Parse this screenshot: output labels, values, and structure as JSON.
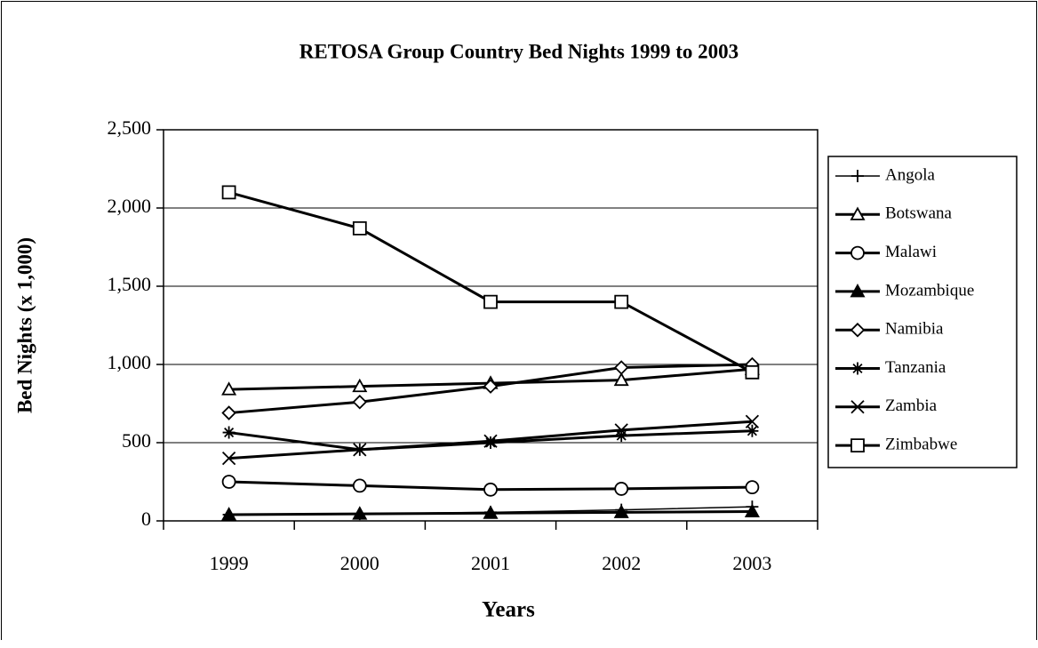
{
  "chart_data": {
    "type": "line",
    "title": "RETOSA Group Country Bed Nights 1999 to 2003",
    "x_label": "Years",
    "y_label": "Bed Nights (x 1,000)",
    "categories": [
      "1999",
      "2000",
      "2001",
      "2002",
      "2003"
    ],
    "ylim": [
      0,
      2500
    ],
    "yticks": [
      0,
      500,
      {
        "value": 1000,
        "label": "1,000"
      },
      {
        "value": 1500,
        "label": "1,500"
      },
      {
        "value": 2000,
        "label": "2,000"
      },
      {
        "value": 2500,
        "label": "2,500"
      }
    ],
    "grid": true,
    "legend": "right",
    "series": [
      {
        "name": "Angola",
        "color": "#000000",
        "marker": "plus",
        "line_width": 1.5,
        "values": [
          40,
          45,
          55,
          70,
          90
        ]
      },
      {
        "name": "Botswana",
        "color": "#000000",
        "marker": "triangle-open",
        "line_width": 3,
        "values": [
          840,
          860,
          880,
          900,
          970
        ]
      },
      {
        "name": "Malawi",
        "color": "#000000",
        "marker": "circle-open",
        "line_width": 3,
        "values": [
          250,
          225,
          200,
          205,
          215
        ]
      },
      {
        "name": "Mozambique",
        "color": "#000000",
        "marker": "triangle-filled",
        "line_width": 3,
        "values": [
          40,
          45,
          50,
          55,
          60
        ]
      },
      {
        "name": "Namibia",
        "color": "#000000",
        "marker": "diamond-open",
        "line_width": 3,
        "values": [
          690,
          760,
          860,
          980,
          1000
        ]
      },
      {
        "name": "Tanzania",
        "color": "#000000",
        "marker": "asterisk",
        "line_width": 3,
        "values": [
          565,
          455,
          500,
          545,
          575
        ]
      },
      {
        "name": "Zambia",
        "color": "#000000",
        "marker": "x",
        "line_width": 3,
        "values": [
          400,
          455,
          510,
          580,
          635
        ]
      },
      {
        "name": "Zimbabwe",
        "color": "#000000",
        "marker": "square-open",
        "line_width": 3,
        "values": [
          2100,
          1870,
          1400,
          1400,
          950
        ]
      }
    ]
  }
}
